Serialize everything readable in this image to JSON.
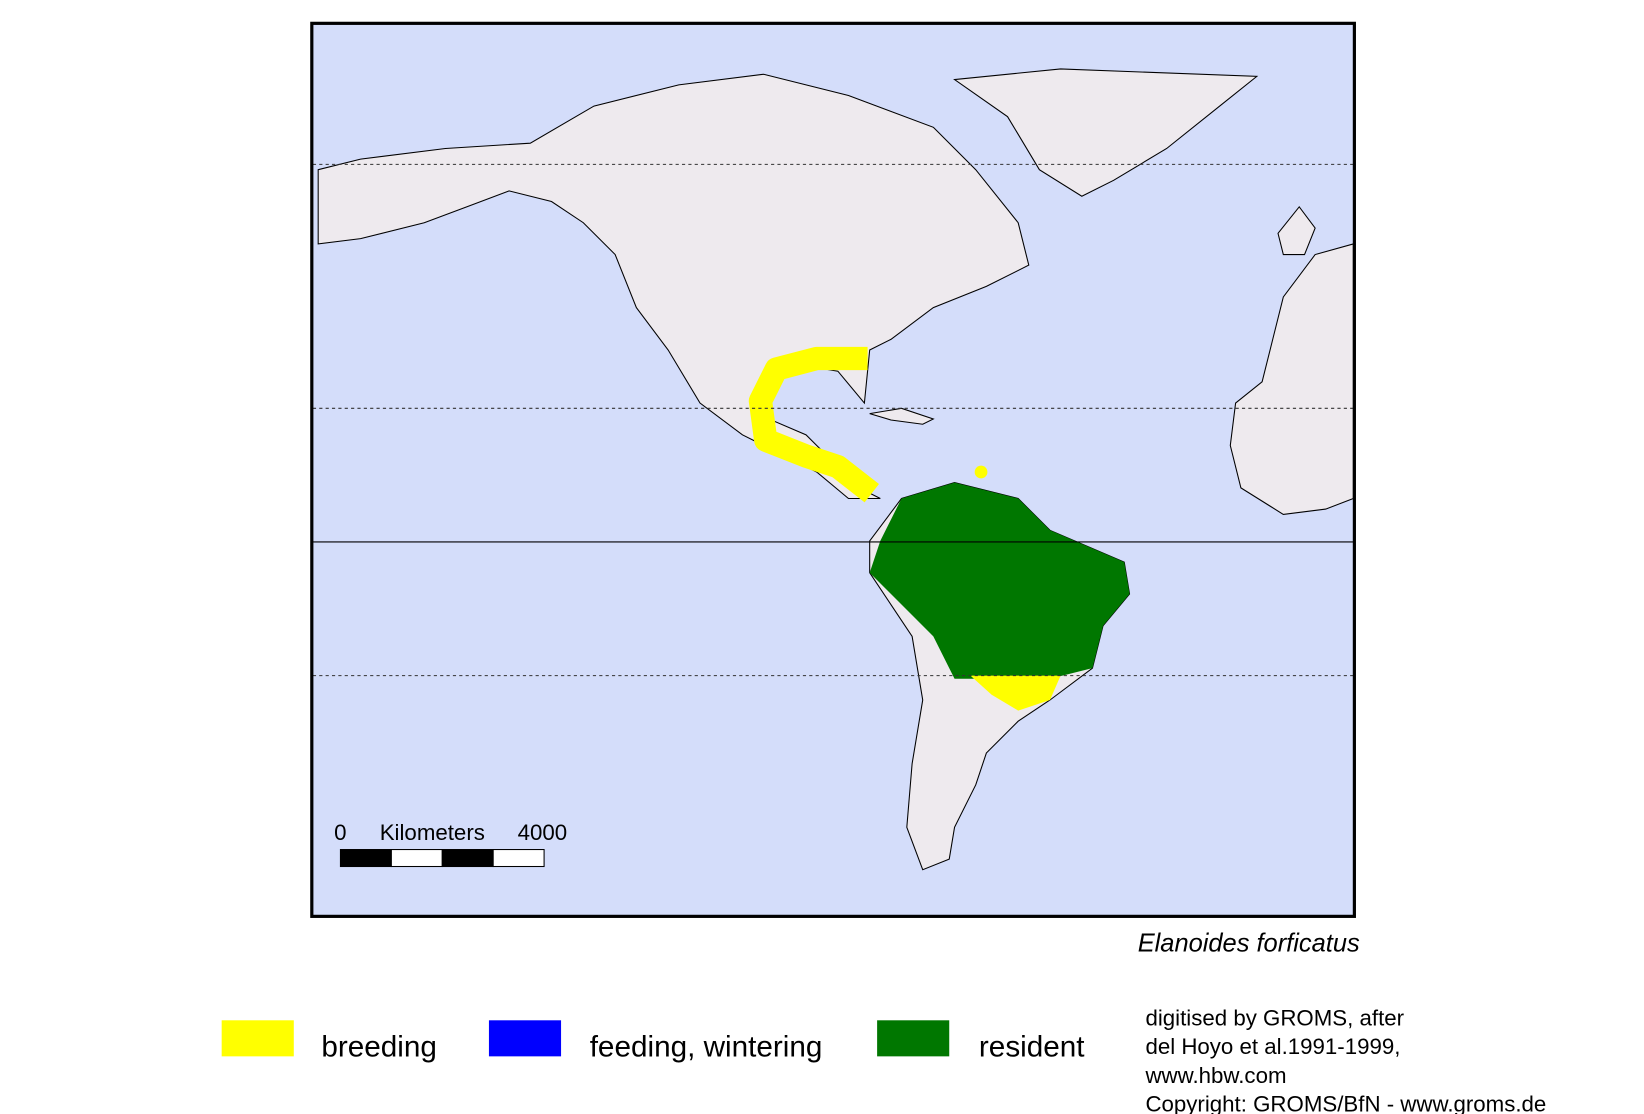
{
  "map": {
    "species": "Elanoides forficatus",
    "scale_bar": {
      "start": "0",
      "unit": "Kilometers",
      "end": "4000"
    }
  },
  "legend": {
    "items": [
      {
        "label": "breeding",
        "color": "#ffff00"
      },
      {
        "label": "feeding, wintering",
        "color": "#0000ff"
      },
      {
        "label": "resident",
        "color": "#007700"
      }
    ]
  },
  "credits": [
    "digitised by GROMS, after",
    "del Hoyo et al.1991-1999,",
    "www.hbw.com",
    "Copyright: GROMS/BfN - www.groms.de"
  ]
}
